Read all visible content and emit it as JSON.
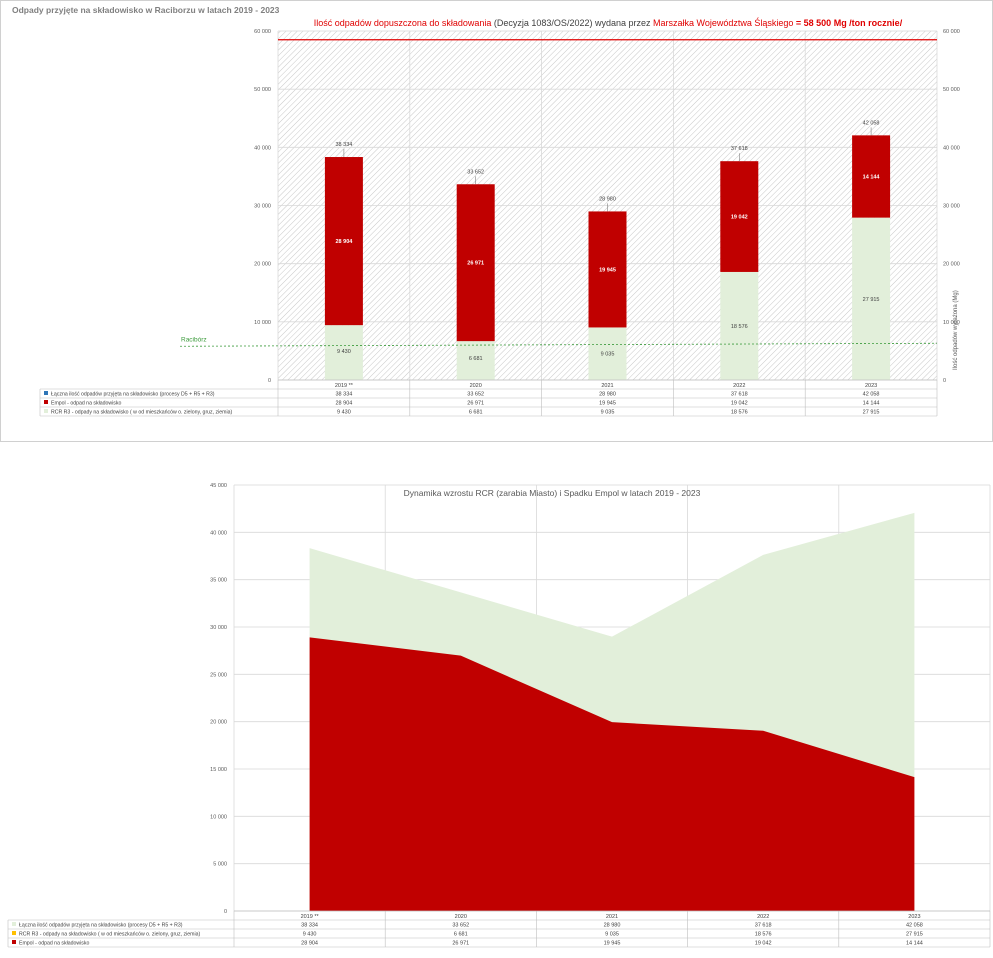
{
  "chart_data": [
    {
      "type": "bar",
      "title": "Odpady przyjęte na składowisko w Raciborzu w latach 2019 - 2023",
      "subtitle_parts": [
        "Ilość odpadów dopuszczona do składowania",
        " (Decyzja 1083/OS/2022) wydana przez ",
        "Marszałka Województwa Śląskiego",
        " = 58 500 Mg /ton rocznie/"
      ],
      "categories": [
        "2019 **",
        "2020",
        "2021",
        "2022",
        "2023"
      ],
      "series": [
        {
          "name": "Łączna ilość odpadów przyjęta na składowisko (procesy D5 + R5 + R3)",
          "values": [
            38334,
            33652,
            28980,
            37618,
            42058
          ],
          "labels": [
            "38 334",
            "33 652",
            "28 980",
            "37 618",
            "42 058"
          ],
          "color": "#2E75B6"
        },
        {
          "name": "Empol - odpad na składowisko",
          "values": [
            28904,
            26971,
            19945,
            19042,
            14144
          ],
          "labels": [
            "28 904",
            "26 971",
            "19 945",
            "19 042",
            "14 144"
          ],
          "color": "#C00000"
        },
        {
          "name": "RCR R3 - odpady na składowisko ( w od mieszkańców o. zielony, gruz, ziemia)",
          "values": [
            9430,
            6681,
            9035,
            18576,
            27915
          ],
          "labels": [
            "9 430",
            "6 681",
            "9 035",
            "18 576",
            "27 915"
          ],
          "color": "#E2EFDA"
        }
      ],
      "table_rows": [
        [
          "38 334",
          "33 652",
          "28 980",
          "37 618",
          "42 058"
        ],
        [
          "28 904",
          "26 971",
          "19 945",
          "19 042",
          "14 144"
        ],
        [
          "9 430",
          "6 681",
          "9 035",
          "18 576",
          "27 915"
        ]
      ],
      "y_ticks": [
        "0",
        "10 000",
        "20 000",
        "30 000",
        "40 000",
        "50 000",
        "60 000"
      ],
      "ylim": [
        0,
        60000
      ],
      "ylabel_right": "Ilość odpadów wyrażona (Mg)",
      "limit_line": {
        "value": 58500,
        "color": "#E00000"
      },
      "raciborz_line": {
        "label": "Racibórz",
        "value": 5800,
        "color": "#3A9A3A"
      },
      "grid": true
    },
    {
      "type": "area",
      "title": "Dynamika wzrostu RCR (zarabia Miasto) i Spadku Empol w latach 2019 - 2023",
      "categories": [
        "2019 **",
        "2020",
        "2021",
        "2022",
        "2023"
      ],
      "series": [
        {
          "name": "Łączna ilość odpadów przyjęta na składowisko (procesy D5 + R5 + R3)",
          "values": [
            38334,
            33652,
            28980,
            37618,
            42058
          ],
          "labels": [
            "38 334",
            "33 652",
            "28 980",
            "37 618",
            "42 058"
          ],
          "color": "#E2EFDA"
        },
        {
          "name": "RCR R3 - odpady na składowisko ( w od mieszkańców o. zielony, gruz, ziemia)",
          "values": [
            9430,
            6681,
            9035,
            18576,
            27915
          ],
          "labels": [
            "9 430",
            "6 681",
            "9 035",
            "18 576",
            "27 915"
          ],
          "color": "#FFC000"
        },
        {
          "name": "Empol - odpad na składowisko",
          "values": [
            28904,
            26971,
            19945,
            19042,
            14144
          ],
          "labels": [
            "28 904",
            "26 971",
            "19 945",
            "19 042",
            "14 144"
          ],
          "color": "#C00000"
        }
      ],
      "y_ticks": [
        "0",
        "5 000",
        "10 000",
        "15 000",
        "20 000",
        "25 000",
        "30 000",
        "35 000",
        "40 000",
        "45 000"
      ],
      "ylim": [
        0,
        45000
      ],
      "grid": true
    }
  ]
}
